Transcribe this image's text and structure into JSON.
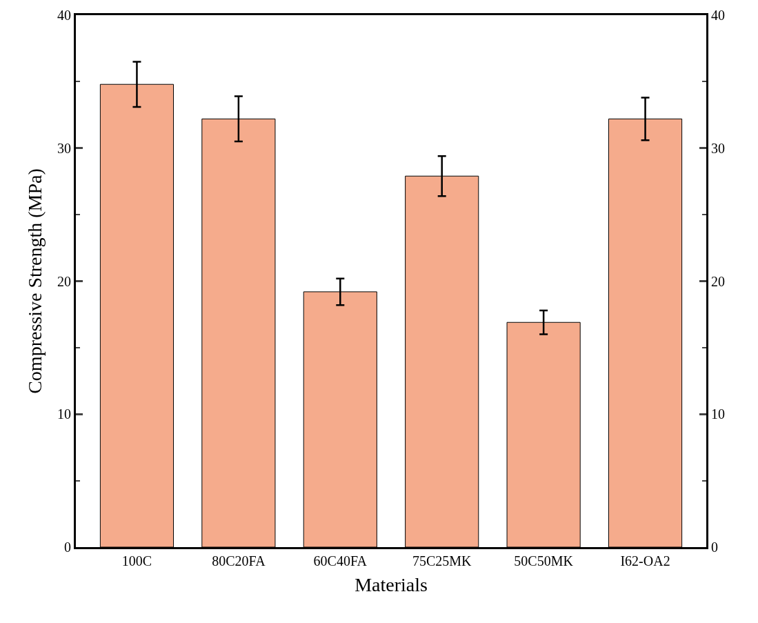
{
  "chart_data": {
    "type": "bar",
    "xlabel": "Materials",
    "ylabel": "Compressive Strength (MPa)",
    "categories": [
      "100C",
      "80C20FA",
      "60C40FA",
      "75C25MK",
      "50C50MK",
      "I62-OA2"
    ],
    "series": [
      {
        "color": "#f5ab8c",
        "values": [
          34.8,
          32.2,
          19.2,
          27.9,
          16.9,
          32.2
        ],
        "errors": [
          1.7,
          1.7,
          1.0,
          1.5,
          0.9,
          1.6
        ]
      }
    ],
    "ylim": [
      0,
      40
    ],
    "yticks": [
      0,
      10,
      20,
      30,
      40
    ],
    "y2lim": [
      0,
      40
    ],
    "y2ticks": [
      0,
      10,
      20,
      30,
      40
    ]
  }
}
